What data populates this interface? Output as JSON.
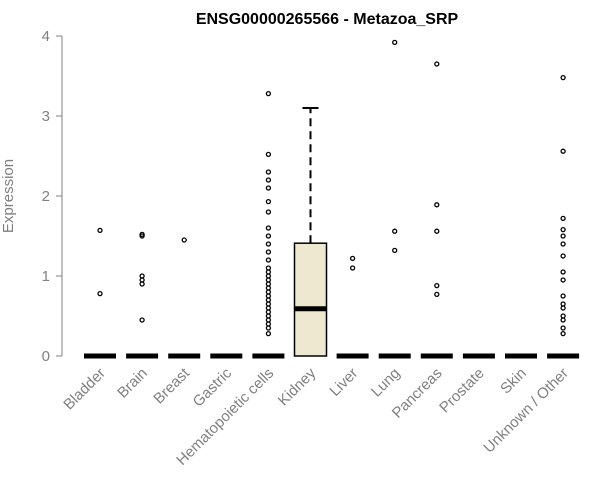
{
  "chart_data": {
    "type": "boxplot",
    "title": "ENSG00000265566 - Metazoa_SRP",
    "xlabel": "",
    "ylabel": "Expression",
    "ylim": [
      0,
      4
    ],
    "yticks": [
      0,
      1,
      2,
      3,
      4
    ],
    "grid": false,
    "legend": "none",
    "categories": [
      "Bladder",
      "Brain",
      "Breast",
      "Gastric",
      "Hematopoietic cells",
      "Kidney",
      "Liver",
      "Lung",
      "Pancreas",
      "Prostate",
      "Skin",
      "Unknown / Other"
    ],
    "boxes": [
      {
        "category": "Bladder",
        "min": 0,
        "q1": 0,
        "median": 0,
        "q3": 0,
        "max": 0,
        "outliers": [
          0.78,
          1.57
        ]
      },
      {
        "category": "Brain",
        "min": 0,
        "q1": 0,
        "median": 0,
        "q3": 0,
        "max": 0,
        "outliers": [
          0.45,
          0.9,
          0.95,
          1.0,
          1.5,
          1.52
        ]
      },
      {
        "category": "Breast",
        "min": 0,
        "q1": 0,
        "median": 0,
        "q3": 0,
        "max": 0,
        "outliers": [
          1.45
        ]
      },
      {
        "category": "Gastric",
        "min": 0,
        "q1": 0,
        "median": 0,
        "q3": 0,
        "max": 0,
        "outliers": []
      },
      {
        "category": "Hematopoietic cells",
        "min": 0,
        "q1": 0,
        "median": 0,
        "q3": 0,
        "max": 0,
        "outliers": [
          0.28,
          0.35,
          0.4,
          0.45,
          0.5,
          0.55,
          0.6,
          0.65,
          0.7,
          0.75,
          0.8,
          0.85,
          0.9,
          0.95,
          1.0,
          1.05,
          1.1,
          1.2,
          1.3,
          1.4,
          1.5,
          1.6,
          1.8,
          1.93,
          2.1,
          2.2,
          2.3,
          2.52,
          3.28
        ]
      },
      {
        "category": "Kidney",
        "min": 0,
        "q1": 0,
        "median": 0.59,
        "q3": 1.41,
        "max": 3.1,
        "outliers": []
      },
      {
        "category": "Liver",
        "min": 0,
        "q1": 0,
        "median": 0,
        "q3": 0,
        "max": 0,
        "outliers": [
          1.1,
          1.22
        ]
      },
      {
        "category": "Lung",
        "min": 0,
        "q1": 0,
        "median": 0,
        "q3": 0,
        "max": 0,
        "outliers": [
          1.32,
          1.56,
          3.92
        ]
      },
      {
        "category": "Pancreas",
        "min": 0,
        "q1": 0,
        "median": 0,
        "q3": 0,
        "max": 0,
        "outliers": [
          0.77,
          0.88,
          1.56,
          1.89,
          3.65
        ]
      },
      {
        "category": "Prostate",
        "min": 0,
        "q1": 0,
        "median": 0,
        "q3": 0,
        "max": 0,
        "outliers": []
      },
      {
        "category": "Skin",
        "min": 0,
        "q1": 0,
        "median": 0,
        "q3": 0,
        "max": 0,
        "outliers": []
      },
      {
        "category": "Unknown / Other",
        "min": 0,
        "q1": 0,
        "median": 0,
        "q3": 0,
        "max": 0,
        "outliers": [
          0.28,
          0.35,
          0.45,
          0.5,
          0.6,
          0.65,
          0.75,
          0.95,
          1.05,
          1.25,
          1.4,
          1.5,
          1.58,
          1.72,
          2.56,
          3.48
        ]
      }
    ],
    "colors": {
      "box_fill": "#efe8d0",
      "box_stroke": "#000000",
      "axis": "#808080",
      "text": "#808080",
      "title": "#000000"
    }
  }
}
